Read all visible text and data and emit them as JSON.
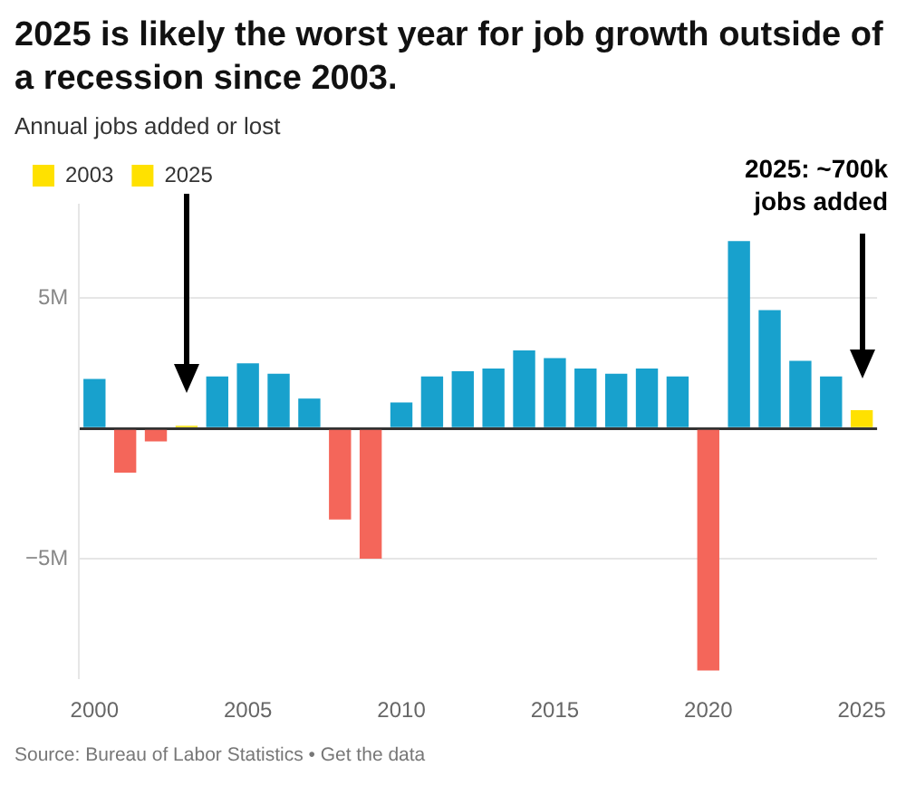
{
  "chart_data": {
    "type": "bar",
    "title": "2025 is likely the worst year for job growth outside of a recession since 2003.",
    "subtitle": "Annual jobs added or lost",
    "categories": [
      "2000",
      null,
      null,
      null,
      null,
      "2005",
      null,
      null,
      null,
      null,
      "2010",
      null,
      null,
      null,
      null,
      "2015",
      null,
      null,
      null,
      null,
      "2020",
      null,
      null,
      null,
      null,
      "2025"
    ],
    "series": [
      {
        "values": [
          1.9,
          -1.7,
          -0.5,
          null,
          2.0,
          2.5,
          2.1,
          1.15,
          -3.5,
          -5.0,
          1.0,
          2.0,
          2.2,
          2.3,
          3.0,
          2.7,
          2.3,
          2.1,
          2.3,
          2.0,
          -9.3,
          7.2,
          4.55,
          2.6,
          2.0,
          null
        ],
        "colors": [
          "#18a1cd",
          "#f4665a",
          "#f4665a",
          null,
          "#18a1cd",
          "#18a1cd",
          "#18a1cd",
          "#18a1cd",
          "#f4665a",
          "#f4665a",
          "#18a1cd",
          "#18a1cd",
          "#18a1cd",
          "#18a1cd",
          "#18a1cd",
          "#18a1cd",
          "#18a1cd",
          "#18a1cd",
          "#18a1cd",
          "#18a1cd",
          "#f4665a",
          "#18a1cd",
          "#18a1cd",
          "#18a1cd",
          "#18a1cd",
          null
        ]
      },
      {
        "name": "2003",
        "color": "#ffe100",
        "values": [
          null,
          null,
          null,
          0.1,
          null,
          null,
          null,
          null,
          null,
          null,
          null,
          null,
          null,
          null,
          null,
          null,
          null,
          null,
          null,
          null,
          null,
          null,
          null,
          null,
          null,
          null
        ]
      },
      {
        "name": "2025",
        "color": "#ffe100",
        "values": [
          null,
          null,
          null,
          null,
          null,
          null,
          null,
          null,
          null,
          null,
          null,
          null,
          null,
          null,
          null,
          null,
          null,
          null,
          null,
          null,
          null,
          null,
          null,
          null,
          null,
          0.7
        ]
      }
    ],
    "stacked": true,
    "ylim": [
      -9.6,
      8.6
    ],
    "yticks": [
      {
        "value": -5,
        "label": "−5M"
      },
      {
        "value": 0,
        "label": null
      },
      {
        "value": 5,
        "label": "5M"
      }
    ],
    "grid": "y",
    "legend": "top left",
    "annotations": [
      "2025: ~700k jobs added",
      "Source: Bureau of Labor Statistics • Get the data"
    ]
  }
}
